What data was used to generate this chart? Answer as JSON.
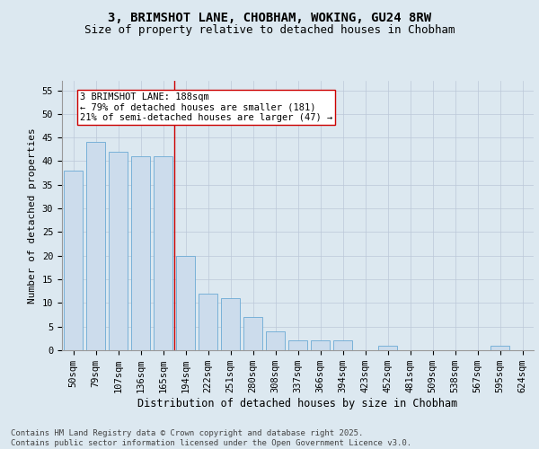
{
  "title1": "3, BRIMSHOT LANE, CHOBHAM, WOKING, GU24 8RW",
  "title2": "Size of property relative to detached houses in Chobham",
  "xlabel": "Distribution of detached houses by size in Chobham",
  "ylabel": "Number of detached properties",
  "categories": [
    "50sqm",
    "79sqm",
    "107sqm",
    "136sqm",
    "165sqm",
    "194sqm",
    "222sqm",
    "251sqm",
    "280sqm",
    "308sqm",
    "337sqm",
    "366sqm",
    "394sqm",
    "423sqm",
    "452sqm",
    "481sqm",
    "509sqm",
    "538sqm",
    "567sqm",
    "595sqm",
    "624sqm"
  ],
  "values": [
    38,
    44,
    42,
    41,
    41,
    20,
    12,
    11,
    7,
    4,
    2,
    2,
    2,
    0,
    1,
    0,
    0,
    0,
    0,
    1,
    0
  ],
  "bar_color": "#ccdcec",
  "bar_edge_color": "#6aaad4",
  "vline_x_index": 4.5,
  "vline_color": "#cc0000",
  "annotation_text": "3 BRIMSHOT LANE: 188sqm\n← 79% of detached houses are smaller (181)\n21% of semi-detached houses are larger (47) →",
  "annotation_box_color": "#ffffff",
  "annotation_box_edge_color": "#cc0000",
  "ylim": [
    0,
    57
  ],
  "yticks": [
    0,
    5,
    10,
    15,
    20,
    25,
    30,
    35,
    40,
    45,
    50,
    55
  ],
  "grid_color": "#bcc8d8",
  "background_color": "#dce8f0",
  "fig_background_color": "#dce8f0",
  "footer_text": "Contains HM Land Registry data © Crown copyright and database right 2025.\nContains public sector information licensed under the Open Government Licence v3.0.",
  "title1_fontsize": 10,
  "title2_fontsize": 9,
  "xlabel_fontsize": 8.5,
  "ylabel_fontsize": 8,
  "tick_fontsize": 7.5,
  "annotation_fontsize": 7.5,
  "footer_fontsize": 6.5
}
